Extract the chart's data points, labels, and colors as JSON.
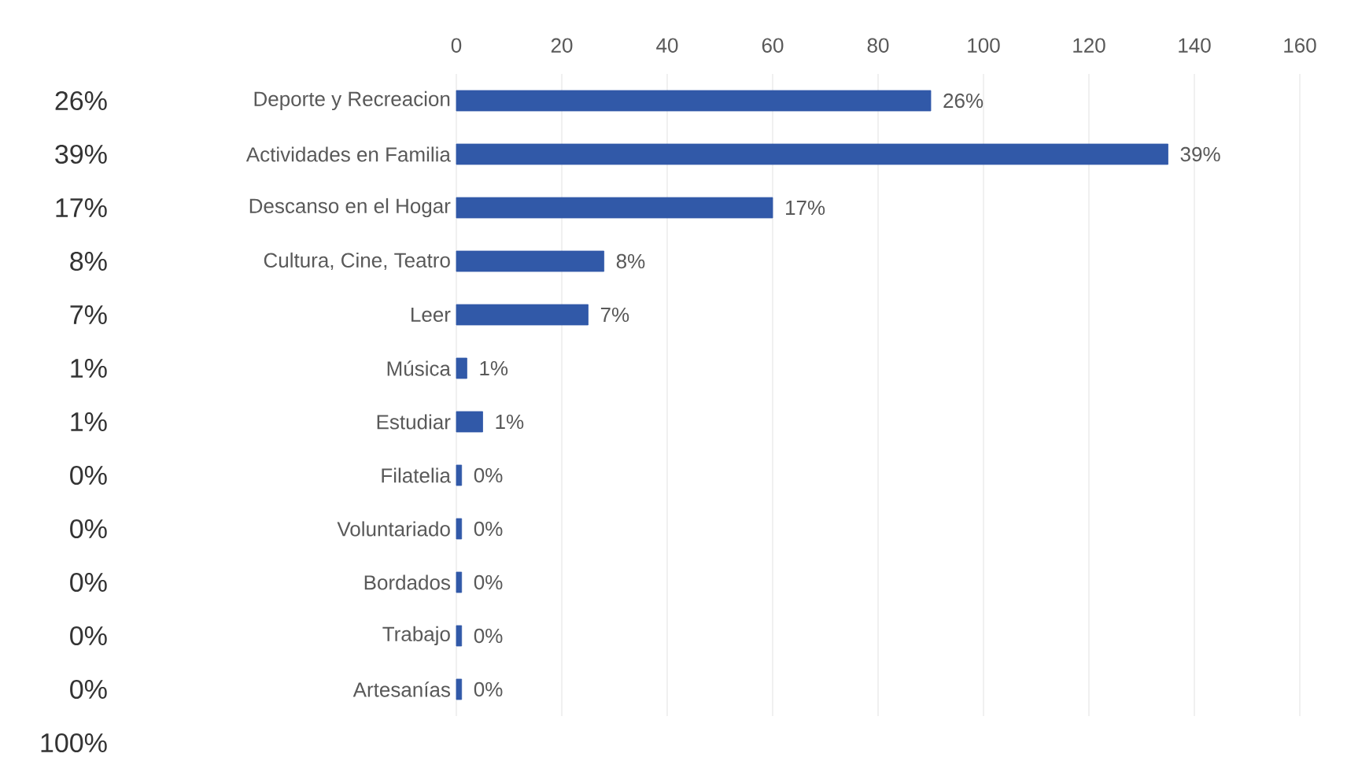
{
  "chart_data": {
    "type": "bar",
    "orientation": "horizontal",
    "categories": [
      "Deporte y Recreacion",
      "Actividades en Familia",
      "Descanso en el Hogar",
      "Cultura, Cine, Teatro",
      "Leer",
      "Música",
      "Estudiar",
      "Filatelia",
      "Voluntariado",
      "Bordados",
      "Trabajo",
      "Artesanías"
    ],
    "values": [
      90,
      135,
      60,
      28,
      25,
      2,
      5,
      1,
      1,
      1,
      1,
      1
    ],
    "color": "#3159a8",
    "xlim": [
      0,
      160
    ],
    "xticks": [
      0,
      20,
      40,
      60,
      80,
      100,
      120,
      140,
      160
    ],
    "grid": "x",
    "annotations": [
      {
        "text": "26%",
        "x": 90,
        "y": "Deporte y Recreacion"
      },
      {
        "text": "39%",
        "x": 135,
        "y": "Actividades en Familia"
      },
      {
        "text": "17%",
        "x": 60,
        "y": "Descanso en el Hogar"
      },
      {
        "text": "8%",
        "x": 28,
        "y": "Cultura, Cine, Teatro"
      },
      {
        "text": "7%",
        "x": 25,
        "y": "Leer"
      },
      {
        "text": "1%",
        "x": 2,
        "y": "Música"
      },
      {
        "text": "1%",
        "x": 5,
        "y": "Estudiar"
      },
      {
        "text": "0%",
        "x": 1,
        "y": "Filatelia"
      },
      {
        "text": "0%",
        "x": 1,
        "y": "Voluntariado"
      },
      {
        "text": "0%",
        "x": 1,
        "y": "Bordados"
      },
      {
        "text": "0%",
        "x": 1,
        "y": "Trabajo"
      },
      {
        "text": "0%",
        "x": 1,
        "y": "Artesanías"
      },
      "26%",
      "39%",
      "17%",
      "8%",
      "7%",
      "1%",
      "1%",
      "0%",
      "0%",
      "0%",
      "0%",
      "0%",
      "100%"
    ]
  }
}
